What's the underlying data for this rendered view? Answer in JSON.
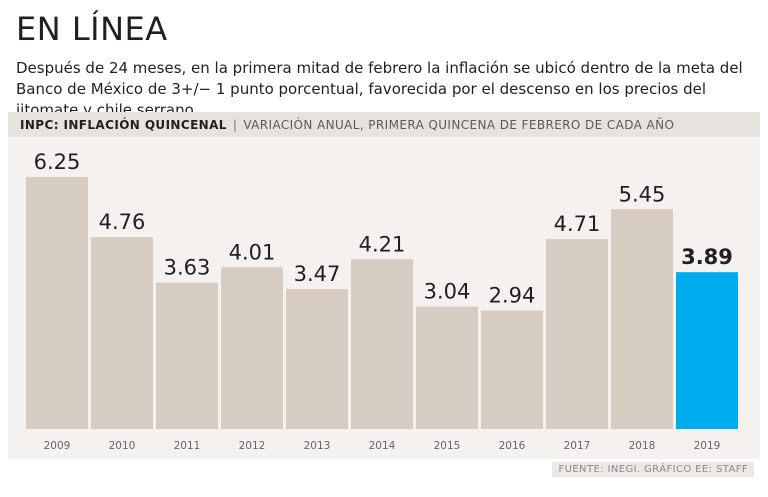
{
  "header": {
    "title": "EN LÍNEA",
    "subtitle": "Después de 24 meses, en la primera mitad de febrero la inflación se ubicó dentro de la meta del Banco de México de 3+/− 1 punto porcentual, favorecida por el descenso en los precios del jitomate y chile serrano."
  },
  "band": {
    "bold_label": "INPC: INFLACIÓN QUINCENAL",
    "separator": "|",
    "light_label": "VARIACIÓN ANUAL, PRIMERA QUINCENA DE FEBRERO DE CADA AÑO"
  },
  "footer": {
    "source": "FUENTE: INEGI. GRÁFICO EE: STAFF"
  },
  "colors": {
    "bar": "#d6ccc2",
    "highlight": "#00aeef",
    "text": "#231f20",
    "tick": "#666666"
  },
  "chart_data": {
    "type": "bar",
    "title": "INPC: INFLACIÓN QUINCENAL",
    "subtitle": "VARIACIÓN ANUAL, PRIMERA QUINCENA DE FEBRERO DE CADA AÑO",
    "categories": [
      "2009",
      "2010",
      "2011",
      "2012",
      "2013",
      "2014",
      "2015",
      "2016",
      "2017",
      "2018",
      "2019"
    ],
    "values": [
      6.25,
      4.76,
      3.63,
      4.01,
      3.47,
      4.21,
      3.04,
      2.94,
      4.71,
      5.45,
      3.89
    ],
    "value_labels": [
      "6.25",
      "4.76",
      "3.63",
      "4.01",
      "3.47",
      "4.21",
      "3.04",
      "2.94",
      "4.71",
      "5.45",
      "3.89"
    ],
    "highlight_index": 10,
    "xlabel": "",
    "ylabel": "",
    "ylim": [
      0,
      6.25
    ],
    "grid": false,
    "legend": "none"
  }
}
